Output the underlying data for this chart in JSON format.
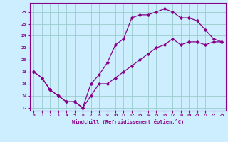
{
  "xlabel": "Windchill (Refroidissement éolien,°C)",
  "xlim": [
    -0.5,
    23.5
  ],
  "ylim": [
    11.5,
    29.5
  ],
  "xticks": [
    0,
    1,
    2,
    3,
    4,
    5,
    6,
    7,
    8,
    9,
    10,
    11,
    12,
    13,
    14,
    15,
    16,
    17,
    18,
    19,
    20,
    21,
    22,
    23
  ],
  "yticks": [
    12,
    14,
    16,
    18,
    20,
    22,
    24,
    26,
    28
  ],
  "bg_color": "#cceeff",
  "line_color": "#880088",
  "grid_color": "#99cccc",
  "line1_x": [
    0,
    1,
    2,
    3,
    4,
    5,
    6,
    7,
    8,
    9,
    10,
    11,
    12,
    13,
    14,
    15,
    16,
    17,
    18,
    19,
    20,
    21,
    22,
    23
  ],
  "line1_y": [
    18,
    17,
    15,
    14,
    13,
    13,
    12,
    16,
    17.5,
    19.5,
    22.5,
    23.5,
    27,
    27.5,
    27.5,
    28,
    28.5,
    28,
    27,
    27,
    26.5,
    25,
    23.5,
    23
  ],
  "line2_x": [
    0,
    1,
    2,
    3,
    4,
    5,
    6,
    7,
    8,
    9,
    10,
    11,
    12,
    13,
    14,
    15,
    16,
    17,
    18,
    19,
    20,
    21,
    22,
    23
  ],
  "line2_y": [
    18,
    17,
    15,
    14,
    13,
    13,
    12,
    14,
    16,
    16,
    17,
    18,
    19,
    20,
    21,
    22,
    22.5,
    23.5,
    22.5,
    23,
    23,
    22.5,
    23,
    23
  ]
}
